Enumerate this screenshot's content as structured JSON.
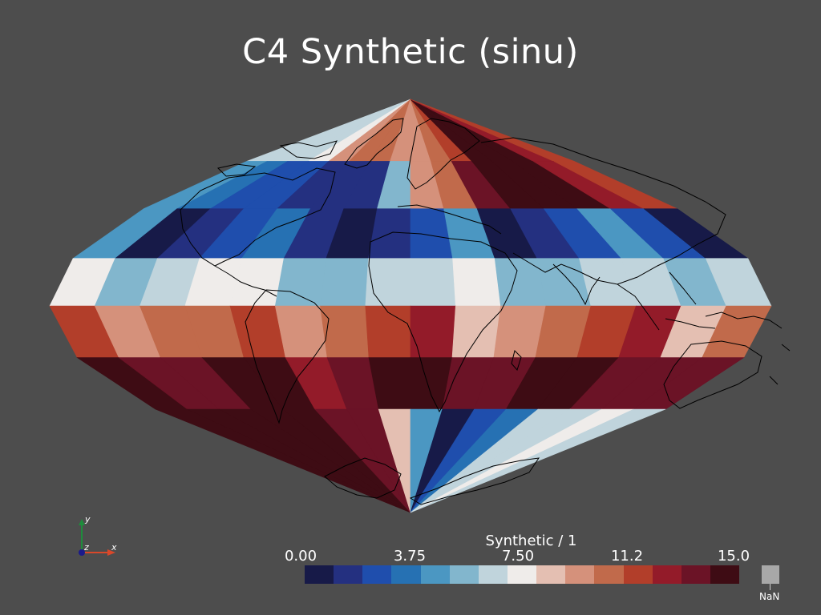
{
  "title": "C4 Synthetic (sinu)",
  "colorbar": {
    "title": "Synthetic / 1",
    "ticks": [
      "0.00",
      "3.75",
      "7.50",
      "11.2",
      "15.0"
    ],
    "range": [
      0,
      15
    ],
    "colors": [
      "#171a48",
      "#243080",
      "#1f4ead",
      "#2671b3",
      "#4b97c2",
      "#82b6cd",
      "#c0d4dc",
      "#efecea",
      "#e4bfb2",
      "#d5917b",
      "#c16a4b",
      "#b23e2a",
      "#931b29",
      "#6b1326",
      "#3e0c14"
    ],
    "nan_label": "NaN",
    "nan_color": "#a8a8a8"
  },
  "axes": {
    "x_label": "x",
    "y_label": "y",
    "z_label": "z"
  },
  "chart_data": {
    "type": "heatmap",
    "projection": "sinusoidal",
    "variable": "Synthetic",
    "units": "1",
    "value_range": [
      0,
      15
    ],
    "rows": [
      [
        6.8,
        6.2,
        6.5,
        7.6,
        9.6,
        10.4,
        10.6,
        9.9,
        9.6,
        10.2,
        11.9,
        14.0,
        14.6,
        14.4,
        12.8,
        11.4
      ],
      [
        4.8,
        3.4,
        2.9,
        2.4,
        1.2,
        1.1,
        1.8,
        5.2,
        9.2,
        10.4,
        13.1,
        14.4,
        14.8,
        14.2,
        12.9,
        11.8
      ],
      [
        4.0,
        0.3,
        1.0,
        2.0,
        3.1,
        1.0,
        0.6,
        1.4,
        2.6,
        4.2,
        0.8,
        1.4,
        2.2,
        4.0,
        2.0,
        0.9
      ],
      [
        7.4,
        5.9,
        6.4,
        7.1,
        7.5,
        5.6,
        5.9,
        6.1,
        6.5,
        7.6,
        5.7,
        5.9,
        6.5,
        6.8,
        5.0,
        6.1
      ],
      [
        11.6,
        9.4,
        10.1,
        10.7,
        11.4,
        9.0,
        10.1,
        11.1,
        12.2,
        8.9,
        9.6,
        10.5,
        11.2,
        12.0,
        8.2,
        10.4
      ],
      [
        14.4,
        13.2,
        13.6,
        14.0,
        14.4,
        12.6,
        13.2,
        14.4,
        14.7,
        13.0,
        13.8,
        14.5,
        14.7,
        13.8,
        13.0,
        13.8
      ],
      [
        14.9,
        14.5,
        14.0,
        14.5,
        14.7,
        13.3,
        13.5,
        8.0,
        4.2,
        0.8,
        2.2,
        3.3,
        6.4,
        6.8,
        7.0,
        6.6
      ]
    ]
  }
}
